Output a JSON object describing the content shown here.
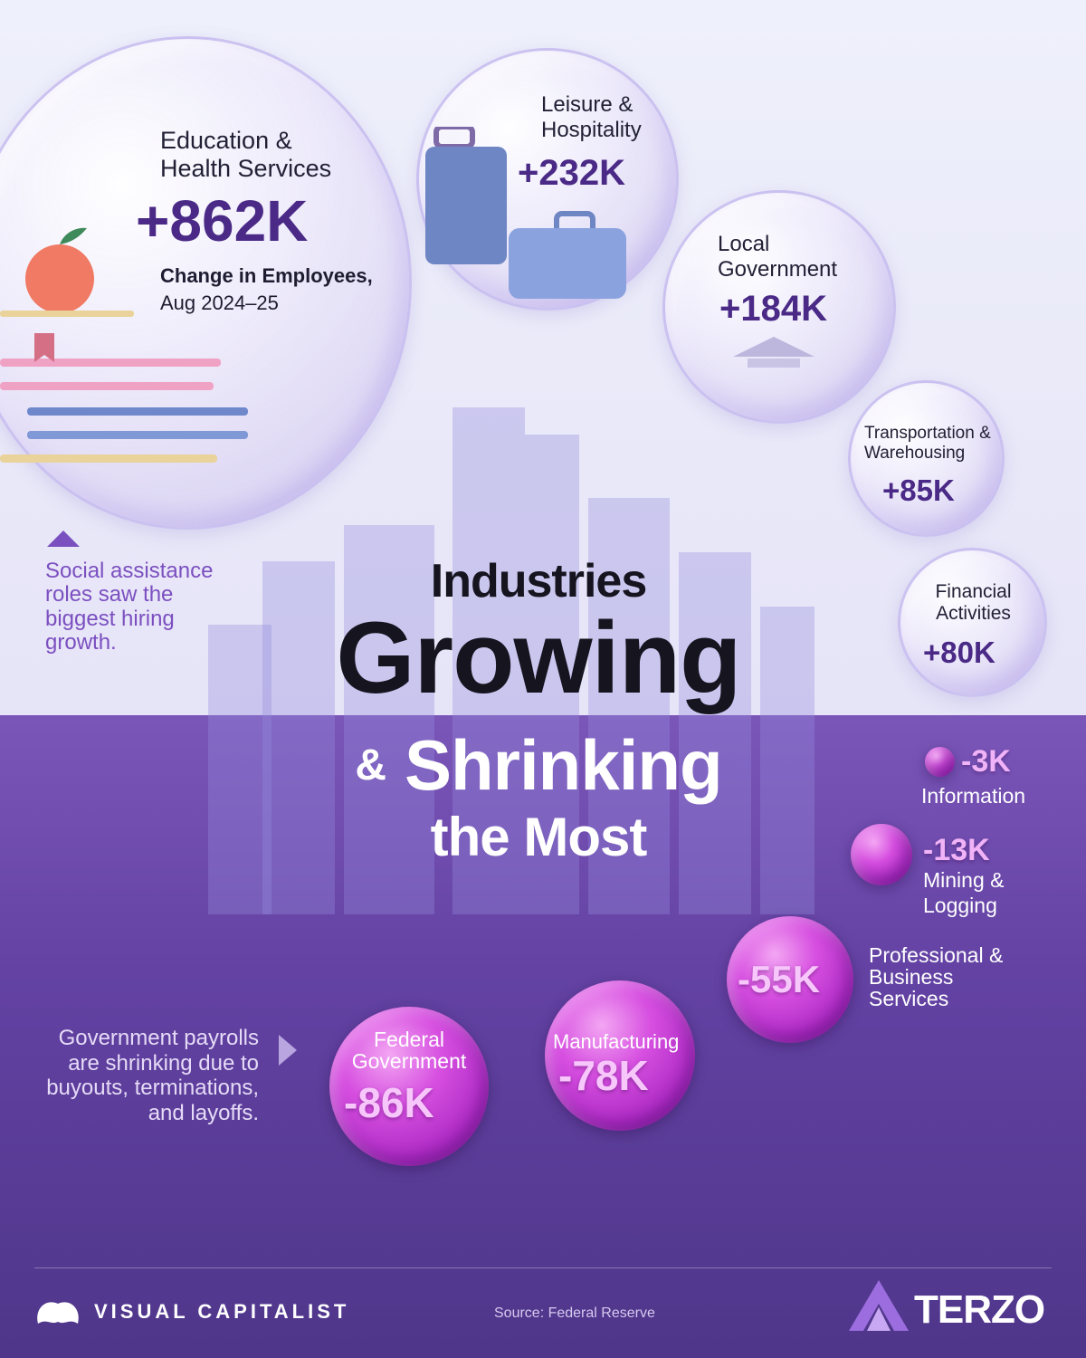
{
  "title": {
    "line1": "Industries",
    "line2": "Growing",
    "line3_amp": "&",
    "line3": "Shrinking",
    "line4": "the Most"
  },
  "note_growth": "Social assistance roles saw the biggest hiring growth.",
  "note_shrink": "Government payrolls are shrinking due to buyouts, terminations, and layoffs.",
  "legend_title": "Change in Employees,",
  "legend_period": "Aug 2024–25",
  "source": "Source: Federal Reserve",
  "brand_left": "VISUAL CAPITALIST",
  "brand_right": "TERZO",
  "colors": {
    "growth_value": "#4a2a86",
    "shrink_bubble": "#c63bd6",
    "bottom_bg": "#5c3f9c"
  },
  "chart_data": {
    "type": "bubble",
    "unit": "K",
    "series": [
      {
        "name": "Growing",
        "points": [
          {
            "label": "Education & Health Services",
            "value": 862,
            "display": "+862K"
          },
          {
            "label": "Leisure & Hospitality",
            "value": 232,
            "display": "+232K"
          },
          {
            "label": "Local Government",
            "value": 184,
            "display": "+184K"
          },
          {
            "label": "Transportation & Warehousing",
            "value": 85,
            "display": "+85K"
          },
          {
            "label": "Financial Activities",
            "value": 80,
            "display": "+80K"
          }
        ]
      },
      {
        "name": "Shrinking",
        "points": [
          {
            "label": "Information",
            "value": -3,
            "display": "-3K"
          },
          {
            "label": "Mining & Logging",
            "value": -13,
            "display": "-13K"
          },
          {
            "label": "Professional & Business Services",
            "value": -55,
            "display": "-55K"
          },
          {
            "label": "Manufacturing",
            "value": -78,
            "display": "-78K"
          },
          {
            "label": "Federal Government",
            "value": -86,
            "display": "-86K"
          }
        ]
      }
    ]
  }
}
